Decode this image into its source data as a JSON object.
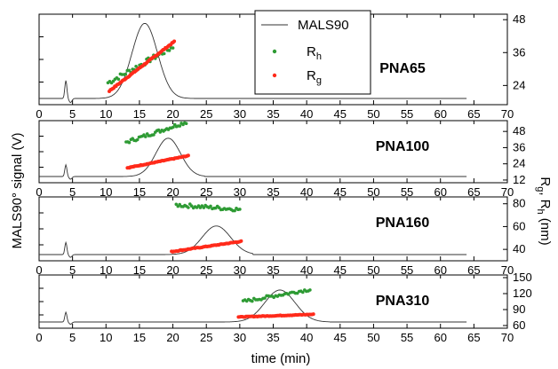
{
  "figure": {
    "xlabel": "time (min)",
    "ylabel_left": "MALS90° signal (V)",
    "ylabel_right": {
      "main": "R",
      "sub1": "g",
      "sep": ", R",
      "sub2": "h",
      "unit": " (nm)"
    }
  },
  "legend": {
    "items": [
      {
        "label": "MALS90",
        "sub": "",
        "kind": "line",
        "color": "#333333"
      },
      {
        "label": "R",
        "sub": "h",
        "kind": "dot",
        "color": "#2e9b34"
      },
      {
        "label": "R",
        "sub": "g",
        "kind": "dot",
        "color": "#ff2a1a"
      }
    ]
  },
  "colors": {
    "mals": "#333333",
    "rh": "#2e9b34",
    "rg": "#ff2a1a"
  },
  "chart_data": [
    {
      "type": "line",
      "label": "PNA65",
      "xlim": [
        0,
        70
      ],
      "xticks": [
        0,
        5,
        10,
        15,
        20,
        25,
        30,
        35,
        40,
        45,
        50,
        55,
        60,
        65,
        70
      ],
      "right_ylim": [
        17,
        50
      ],
      "right_yticks": [
        24,
        36,
        48
      ],
      "mals_peak_time": 15.8,
      "mals_peak_width": 2.7,
      "mals_peak_rel_height": 0.92,
      "mals_start": 10.0,
      "mals_end": 21.5,
      "mals_end_time": 64,
      "series": [
        {
          "name": "Rh",
          "x_start": 10.3,
          "x_end": 20.0,
          "values_start": 25,
          "values_end": 38
        },
        {
          "name": "Rg",
          "x_start": 10.5,
          "x_end": 20.2,
          "values_start": 22,
          "values_end": 40
        }
      ]
    },
    {
      "type": "line",
      "label": "PNA100",
      "xlim": [
        0,
        70
      ],
      "xticks": [
        0,
        5,
        10,
        15,
        20,
        25,
        30,
        35,
        40,
        45,
        50,
        55,
        60,
        65,
        70
      ],
      "right_ylim": [
        10,
        56
      ],
      "right_yticks": [
        12,
        24,
        36,
        48
      ],
      "mals_peak_time": 19.3,
      "mals_peak_width": 2.6,
      "mals_peak_rel_height": 0.72,
      "mals_start": 13.0,
      "mals_end": 22.8,
      "mals_end_time": 64,
      "series": [
        {
          "name": "Rh",
          "x_start": 13.0,
          "x_end": 22.0,
          "values_start": 40,
          "values_end": 55
        },
        {
          "name": "Rg",
          "x_start": 13.2,
          "x_end": 22.3,
          "values_start": 21,
          "values_end": 30
        }
      ]
    },
    {
      "type": "line",
      "label": "PNA160",
      "xlim": [
        0,
        70
      ],
      "xticks": [
        0,
        5,
        10,
        15,
        20,
        25,
        30,
        35,
        40,
        45,
        50,
        55,
        60,
        65,
        70
      ],
      "right_ylim": [
        30,
        86
      ],
      "right_yticks": [
        40,
        60,
        80
      ],
      "mals_peak_time": 26.5,
      "mals_peak_width": 3.0,
      "mals_peak_rel_height": 0.52,
      "mals_start": 19.5,
      "mals_end": 30.0,
      "mals_end_time": 64,
      "series": [
        {
          "name": "Rh",
          "x_start": 20.5,
          "x_end": 30.0,
          "values_start": 79,
          "values_end": 75
        },
        {
          "name": "Rg",
          "x_start": 19.8,
          "x_end": 30.2,
          "values_start": 38,
          "values_end": 47
        }
      ]
    },
    {
      "type": "line",
      "label": "PNA310",
      "xlim": [
        0,
        70
      ],
      "xticks": [
        0,
        5,
        10,
        15,
        20,
        25,
        30,
        35,
        40,
        45,
        50,
        55,
        60,
        65,
        70
      ],
      "right_ylim": [
        55,
        155
      ],
      "right_yticks": [
        60,
        90,
        120,
        150
      ],
      "mals_peak_time": 36.0,
      "mals_peak_width": 3.2,
      "mals_peak_rel_height": 0.72,
      "mals_start": 29.8,
      "mals_end": 41.5,
      "mals_end_time": 64,
      "series": [
        {
          "name": "Rh",
          "x_start": 30.5,
          "x_end": 40.5,
          "values_start": 105,
          "values_end": 128
        },
        {
          "name": "Rg",
          "x_start": 29.8,
          "x_end": 41.0,
          "values_start": 76,
          "values_end": 81
        }
      ]
    }
  ]
}
